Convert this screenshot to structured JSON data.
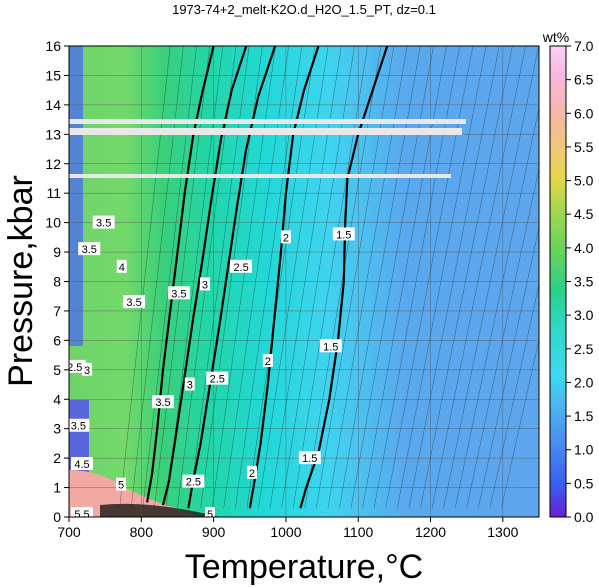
{
  "chart_data": {
    "type": "heatmap",
    "title": "1973-74+2_melt-K2O.d_H2O_1.5_PT, dz=0.1",
    "xlabel": "Temperature,°C",
    "ylabel": "Pressure,kbar",
    "xlim": [
      700,
      1350
    ],
    "ylim": [
      0,
      16
    ],
    "xticks": [
      "700",
      "800",
      "900",
      "1000",
      "1100",
      "1200",
      "1300"
    ],
    "yticks": [
      "0",
      "1",
      "2",
      "3",
      "4",
      "5",
      "6",
      "7",
      "8",
      "9",
      "10",
      "11",
      "12",
      "13",
      "14",
      "15",
      "16"
    ],
    "grid": true,
    "colorbar": {
      "label": "wt%",
      "range": [
        0.0,
        7.0
      ],
      "ticks": [
        "0.0",
        "0.5",
        "1.0",
        "1.5",
        "2.0",
        "2.5",
        "3.0",
        "3.5",
        "4.0",
        "4.5",
        "5.0",
        "5.5",
        "6.0",
        "6.5",
        "7.0"
      ],
      "placement": "right"
    },
    "contours": [
      {
        "level": "1.5",
        "points": [
          [
            1020,
            0.3
          ],
          [
            1028,
            1.0
          ],
          [
            1045,
            2.2
          ],
          [
            1060,
            4.0
          ],
          [
            1072,
            6.0
          ],
          [
            1080,
            8.0
          ],
          [
            1082,
            10.0
          ],
          [
            1085,
            11.5
          ],
          [
            1100,
            13.0
          ],
          [
            1120,
            14.5
          ],
          [
            1140,
            16.0
          ]
        ]
      },
      {
        "level": "2",
        "points": [
          [
            950,
            0.3
          ],
          [
            955,
            1.0
          ],
          [
            965,
            2.5
          ],
          [
            975,
            4.5
          ],
          [
            985,
            7.0
          ],
          [
            993,
            9.0
          ],
          [
            1000,
            11.0
          ],
          [
            1010,
            13.0
          ],
          [
            1025,
            14.5
          ],
          [
            1045,
            16.0
          ]
        ]
      },
      {
        "level": "2.5",
        "points": [
          [
            865,
            0.3
          ],
          [
            870,
            1.0
          ],
          [
            882,
            2.5
          ],
          [
            895,
            4.5
          ],
          [
            908,
            6.5
          ],
          [
            920,
            8.5
          ],
          [
            932,
            10.5
          ],
          [
            945,
            12.5
          ],
          [
            962,
            14.3
          ],
          [
            985,
            16.0
          ]
        ]
      },
      {
        "level": "3",
        "points": [
          [
            830,
            0.4
          ],
          [
            838,
            1.2
          ],
          [
            848,
            2.8
          ],
          [
            860,
            4.8
          ],
          [
            872,
            6.8
          ],
          [
            885,
            8.8
          ],
          [
            897,
            10.8
          ],
          [
            910,
            12.8
          ],
          [
            925,
            14.5
          ],
          [
            945,
            16.0
          ]
        ]
      },
      {
        "level": "3.5",
        "points": [
          [
            808,
            0.5
          ],
          [
            815,
            1.5
          ],
          [
            822,
            3.0
          ],
          [
            830,
            5.0
          ],
          [
            840,
            7.0
          ],
          [
            850,
            9.0
          ],
          [
            860,
            11.0
          ],
          [
            872,
            13.0
          ],
          [
            885,
            14.5
          ],
          [
            900,
            16.0
          ]
        ]
      }
    ],
    "contour_labels": [
      {
        "text": "1.5",
        "x": 1080,
        "y": 9.6
      },
      {
        "text": "1.5",
        "x": 1062,
        "y": 5.8
      },
      {
        "text": "1.5",
        "x": 1033,
        "y": 2.0
      },
      {
        "text": "2",
        "x": 1000,
        "y": 9.5
      },
      {
        "text": "2",
        "x": 975,
        "y": 5.3
      },
      {
        "text": "2",
        "x": 953,
        "y": 1.5
      },
      {
        "text": "2.5",
        "x": 938,
        "y": 8.5
      },
      {
        "text": "2.5",
        "x": 905,
        "y": 4.7
      },
      {
        "text": "2.5",
        "x": 872,
        "y": 1.2
      },
      {
        "text": "3",
        "x": 888,
        "y": 7.9
      },
      {
        "text": "3",
        "x": 867,
        "y": 4.5
      },
      {
        "text": "3.5",
        "x": 852,
        "y": 7.6
      },
      {
        "text": "3.5",
        "x": 830,
        "y": 3.9
      },
      {
        "text": "3.5",
        "x": 790,
        "y": 7.3
      },
      {
        "text": "3.5",
        "x": 748,
        "y": 10.0
      },
      {
        "text": "3.5",
        "x": 728,
        "y": 9.1
      },
      {
        "text": "3.5",
        "x": 713,
        "y": 3.1
      },
      {
        "text": "4",
        "x": 773,
        "y": 8.5
      },
      {
        "text": "4.5",
        "x": 718,
        "y": 1.8
      },
      {
        "text": "2.5",
        "x": 708,
        "y": 5.1
      },
      {
        "text": "3",
        "x": 725,
        "y": 5.0
      },
      {
        "text": "5",
        "x": 772,
        "y": 1.1
      },
      {
        "text": "5.5",
        "x": 718,
        "y": 0.1
      },
      {
        "text": "5",
        "x": 895,
        "y": 0.1
      }
    ]
  }
}
